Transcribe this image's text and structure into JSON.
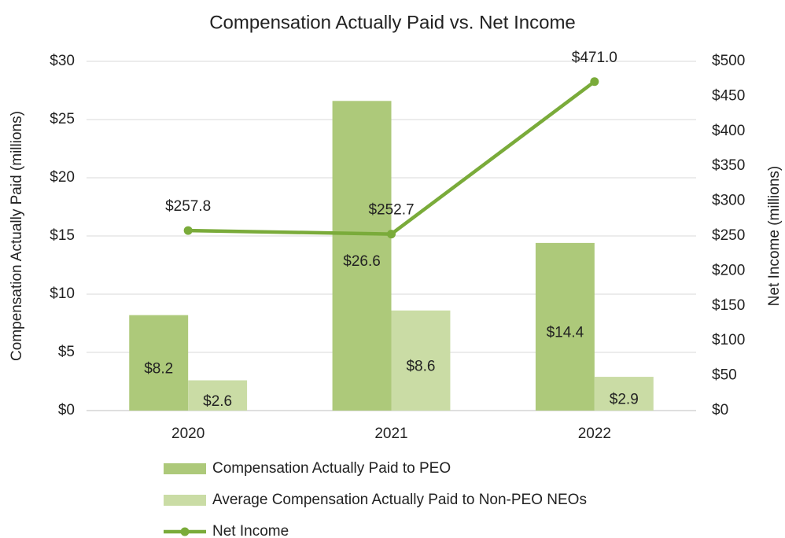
{
  "chart_data": {
    "type": "bar",
    "title": "Compensation Actually Paid vs. Net Income",
    "y_label": "Compensation Actually Paid (millions)",
    "y2_label": "Net Income (millions)",
    "categories": [
      "2020",
      "2021",
      "2022"
    ],
    "series": [
      {
        "name": "Compensation Actually Paid to PEO",
        "type": "bar",
        "color": "#adc97a",
        "values": [
          8.2,
          26.6,
          14.4
        ],
        "value_labels": [
          "$8.2",
          "$26.6",
          "$14.4"
        ]
      },
      {
        "name": "Average Compensation Actually Paid to Non-PEO NEOs",
        "type": "bar",
        "color": "#cadca5",
        "values": [
          2.6,
          8.6,
          2.9
        ],
        "value_labels": [
          "$2.6",
          "$8.6",
          "$2.9"
        ]
      },
      {
        "name": "Net Income",
        "type": "line",
        "axis": "y2",
        "color": "#7aab3a",
        "values": [
          257.8,
          252.7,
          471.0
        ],
        "value_labels": [
          "$257.8",
          "$252.7",
          "$471.0"
        ]
      }
    ],
    "ylim": [
      0,
      30
    ],
    "yticks": [
      {
        "value": 0,
        "label": "$0"
      },
      {
        "value": 5,
        "label": "$5"
      },
      {
        "value": 10,
        "label": "$10"
      },
      {
        "value": 15,
        "label": "$15"
      },
      {
        "value": 20,
        "label": "$20"
      },
      {
        "value": 25,
        "label": "$25"
      },
      {
        "value": 30,
        "label": "$30"
      }
    ],
    "y2lim": [
      0,
      500
    ],
    "y2ticks": [
      {
        "value": 0,
        "label": "$0"
      },
      {
        "value": 50,
        "label": "$50"
      },
      {
        "value": 100,
        "label": "$100"
      },
      {
        "value": 150,
        "label": "$150"
      },
      {
        "value": 200,
        "label": "$200"
      },
      {
        "value": 250,
        "label": "$250"
      },
      {
        "value": 300,
        "label": "$300"
      },
      {
        "value": 350,
        "label": "$350"
      },
      {
        "value": 400,
        "label": "$400"
      },
      {
        "value": 450,
        "label": "$450"
      },
      {
        "value": 500,
        "label": "$500"
      }
    ],
    "grid": true,
    "legend": "bottom"
  }
}
